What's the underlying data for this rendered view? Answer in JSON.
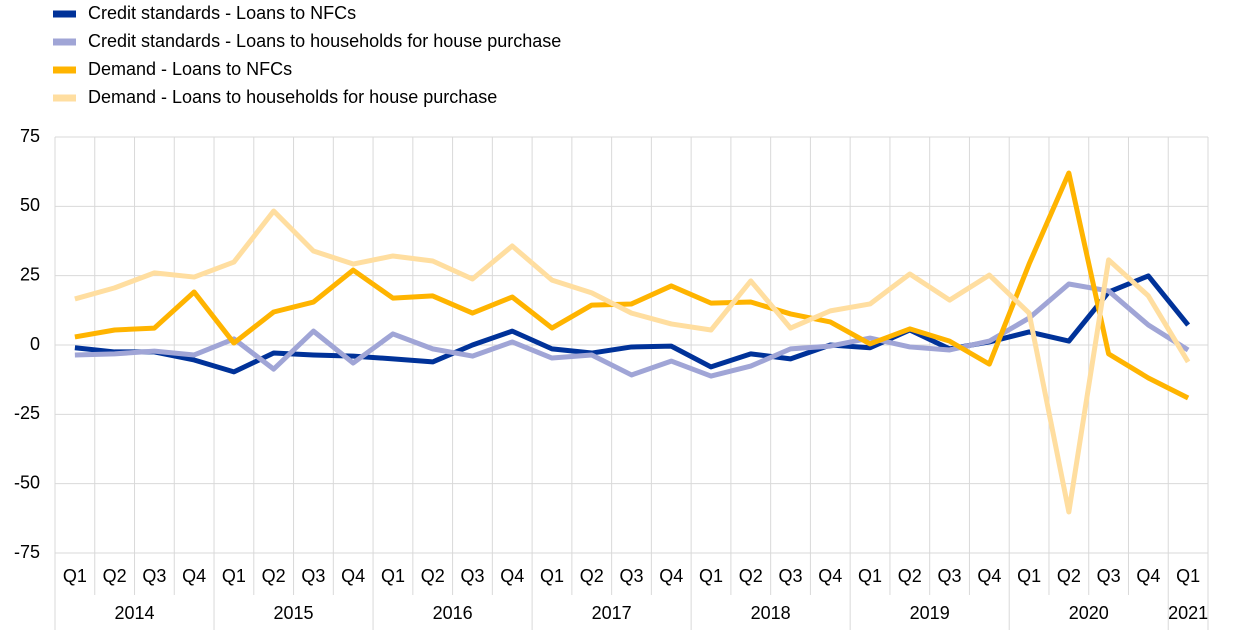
{
  "chart_data": {
    "type": "line",
    "categories": [
      "Q1",
      "Q2",
      "Q3",
      "Q4",
      "Q1",
      "Q2",
      "Q3",
      "Q4",
      "Q1",
      "Q2",
      "Q3",
      "Q4",
      "Q1",
      "Q2",
      "Q3",
      "Q4",
      "Q1",
      "Q2",
      "Q3",
      "Q4",
      "Q1",
      "Q2",
      "Q3",
      "Q4",
      "Q1",
      "Q2",
      "Q3",
      "Q4",
      "Q1"
    ],
    "years": [
      "2014",
      "2015",
      "2016",
      "2017",
      "2018",
      "2019",
      "2020",
      "2021"
    ],
    "series": [
      {
        "name": "Credit standards - Loans to NFCs",
        "color": "#003299",
        "values": [
          -1,
          -2.5,
          -2.5,
          -5.4,
          -9.7,
          -2.9,
          -3.6,
          -4,
          -5,
          -6.1,
          0,
          5,
          -1.4,
          -2.9,
          -0.7,
          -0.4,
          -7.9,
          -3.2,
          -5,
          0,
          -1,
          5.4,
          -1.4,
          1.1,
          4.7,
          1.4,
          19.1,
          24.9,
          7.2
        ]
      },
      {
        "name": "Credit standards - Loans to households for house purchase",
        "color": "#a0a5d6",
        "values": [
          -3.6,
          -3.2,
          -2.2,
          -3.6,
          2.2,
          -8.7,
          5,
          -6.5,
          4,
          -1.4,
          -4,
          1.1,
          -4.7,
          -3.6,
          -10.8,
          -5.8,
          -11.2,
          -7.6,
          -1.4,
          -0.4,
          2.5,
          -0.7,
          -1.8,
          1.4,
          9.7,
          22,
          19.5,
          7.2,
          -1.8
        ]
      },
      {
        "name": "Demand - Loans to NFCs",
        "color": "#ffb400",
        "values": [
          2.9,
          5.4,
          6.1,
          19.1,
          0.7,
          11.9,
          15.5,
          27,
          16.9,
          17.7,
          11.5,
          17.3,
          6.1,
          14.4,
          14.8,
          21.3,
          15.1,
          15.5,
          11.2,
          8.3,
          0.4,
          5.8,
          1.4,
          -6.9,
          29.2,
          62,
          -3.2,
          -11.9,
          -19.1
        ]
      },
      {
        "name": "Demand - Loans to households for house purchase",
        "color": "#ffdea0",
        "values": [
          16.6,
          20.6,
          26,
          24.5,
          29.9,
          48.3,
          33.9,
          29.2,
          32.1,
          30.3,
          23.8,
          35.7,
          23.4,
          18.8,
          11.5,
          7.6,
          5.4,
          23.1,
          6.1,
          12.3,
          14.8,
          25.6,
          16.2,
          25.2,
          11.5,
          -60.2,
          30.7,
          17.7,
          -6.1
        ]
      }
    ],
    "ylim": [
      -75,
      75
    ],
    "yticks": [
      -75,
      -50,
      -25,
      0,
      25,
      50,
      75
    ],
    "grid": true
  }
}
